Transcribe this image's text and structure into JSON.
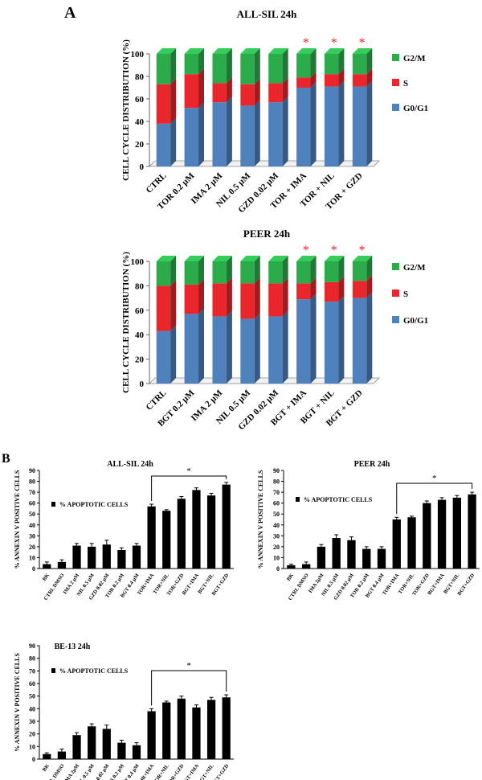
{
  "panels": {
    "a_label": "A",
    "b_label": "B"
  },
  "colors": {
    "g0g1": "#4f81bd",
    "s": "#e8262b",
    "g2m": "#2cab4b",
    "bar": "#000000",
    "star": "#e8262b"
  },
  "chart_data": [
    {
      "type": "bar",
      "stacked": true,
      "style": "3d",
      "title": "ALL-SIL 24h",
      "ylabel": "CELL CYCLE DISTRIBUTION (%)",
      "ylim": [
        0,
        100
      ],
      "yticks": [
        0,
        20,
        40,
        60,
        80,
        100
      ],
      "categories": [
        "CTRL",
        "TOR 0.2 µM",
        "IMA 2 µM",
        "NIL 0.5 µM",
        "GZD 0.02 µM",
        "TOR + IMA",
        "TOR + NIL",
        "TOR + GZD"
      ],
      "series": [
        {
          "name": "G0/G1",
          "color": "#4f81bd",
          "values": [
            38,
            52,
            57,
            54,
            57,
            70,
            71,
            71
          ]
        },
        {
          "name": "S",
          "color": "#e8262b",
          "values": [
            35,
            30,
            17,
            19,
            17,
            9,
            11,
            11
          ]
        },
        {
          "name": "G2/M",
          "color": "#2cab4b",
          "values": [
            27,
            18,
            26,
            27,
            26,
            21,
            18,
            18
          ]
        }
      ],
      "legend_order": [
        "G2/M",
        "S",
        "G0/G1"
      ],
      "legend_position": "right",
      "significance": [
        false,
        false,
        false,
        false,
        false,
        true,
        true,
        true
      ],
      "marker": "*"
    },
    {
      "type": "bar",
      "stacked": true,
      "style": "3d",
      "title": "PEER 24h",
      "ylabel": "CELL CYCLE DISTRIBUTION (%)",
      "ylim": [
        0,
        100
      ],
      "yticks": [
        0,
        20,
        40,
        60,
        80,
        100
      ],
      "categories": [
        "CTRL",
        "BGT 0.2 µM",
        "IMA 2 µM",
        "NIL 0.5 µM",
        "GZD 0.02 µM",
        "BGT + IMA",
        "BGT + NIL",
        "BGT + GZD"
      ],
      "series": [
        {
          "name": "G0/G1",
          "color": "#4f81bd",
          "values": [
            43,
            57,
            55,
            53,
            55,
            69,
            67,
            70
          ]
        },
        {
          "name": "S",
          "color": "#e8262b",
          "values": [
            37,
            24,
            27,
            29,
            27,
            13,
            16,
            14
          ]
        },
        {
          "name": "G2/M",
          "color": "#2cab4b",
          "values": [
            20,
            19,
            18,
            18,
            18,
            18,
            17,
            16
          ]
        }
      ],
      "legend_order": [
        "G2/M",
        "S",
        "G0/G1"
      ],
      "legend_position": "right",
      "significance": [
        false,
        false,
        false,
        false,
        false,
        true,
        true,
        true
      ],
      "marker": "*"
    },
    {
      "type": "bar",
      "title": "ALL-SIL 24h",
      "ylabel": "% ANNEXIN V POSITIVE CELLS",
      "ylim": [
        0,
        90
      ],
      "yticks": [
        0,
        10,
        20,
        30,
        40,
        50,
        60,
        70,
        80,
        90
      ],
      "categories": [
        "BK",
        "CTRL DMSO",
        "IMA 2 µM",
        "NIL 0.5 µM",
        "GZD 0.02 µM",
        "TOR 0.2 µM",
        "BGT 0.4 µM",
        "TOR+IMA",
        "TOR+NIL",
        "TOR+GZD",
        "BGT+IMA",
        "BGT+NIL",
        "BGT+GZD"
      ],
      "series": [
        {
          "name": "% APOPTOTIC CELLS",
          "values": [
            4,
            6,
            21,
            20,
            22,
            17,
            21,
            57,
            53,
            64,
            72,
            67,
            77
          ],
          "errors": [
            2,
            2,
            2,
            3,
            4,
            2,
            2,
            2,
            1,
            2,
            2,
            2,
            2
          ]
        }
      ],
      "bracket": {
        "from": "TOR+IMA",
        "to": "BGT+GZD",
        "label": "*"
      },
      "legend_position": "top-left"
    },
    {
      "type": "bar",
      "title": "PEER 24h",
      "ylabel": "% ANNEXIN V POSITIVE CELLS",
      "ylim": [
        0,
        90
      ],
      "yticks": [
        0,
        10,
        20,
        30,
        40,
        50,
        60,
        70,
        80,
        90
      ],
      "categories": [
        "BK",
        "CTRL DMSO",
        "IMA 2µM",
        "NIL 0.5 µM",
        "GZD 0.02 µM",
        "TOR 0.2 µM",
        "BGT 0.4 µM",
        "TOR+IMA",
        "TOR+NIL",
        "TOR+GZD",
        "BGT+IMA",
        "BGT+NIL",
        "BGT+GZD"
      ],
      "series": [
        {
          "name": "% APOPTOTIC CELLS",
          "values": [
            3,
            4,
            20,
            28,
            26,
            18,
            18,
            45,
            47,
            60,
            63,
            65,
            68
          ],
          "errors": [
            1,
            2,
            2,
            3,
            3,
            2,
            2,
            2,
            1,
            2,
            2,
            2,
            2
          ]
        }
      ],
      "bracket": {
        "from": "TOR+IMA",
        "to": "BGT+GZD",
        "label": "*"
      },
      "legend_position": "top-left"
    },
    {
      "type": "bar",
      "title": "BE-13 24h",
      "ylabel": "% ANNEXIN V POSITIVE CELLS",
      "ylim": [
        0,
        90
      ],
      "yticks": [
        0,
        10,
        20,
        30,
        40,
        50,
        60,
        70,
        80,
        90
      ],
      "categories": [
        "BK",
        "CTRL DMSO",
        "IMA 2µM",
        "NIL 0.5 µM",
        "GZD 0.02 µM",
        "TOR 0.2 µM",
        "BGT 0.4 µM",
        "TOR+IMA",
        "TOR+NIL",
        "TOR+GZD",
        "BGT+IMA",
        "BGT+NIL",
        "BGT+GZD"
      ],
      "series": [
        {
          "name": "% APOPTOTIC CELLS",
          "values": [
            4,
            6,
            19,
            26,
            24,
            13,
            11,
            38,
            45,
            48,
            41,
            47,
            49
          ],
          "errors": [
            1,
            2,
            2,
            2,
            3,
            2,
            2,
            2,
            1,
            2,
            2,
            2,
            2
          ]
        }
      ],
      "bracket": {
        "from": "TOR+IMA",
        "to": "BGT+GZD",
        "label": "*"
      },
      "legend_position": "top-left"
    }
  ]
}
